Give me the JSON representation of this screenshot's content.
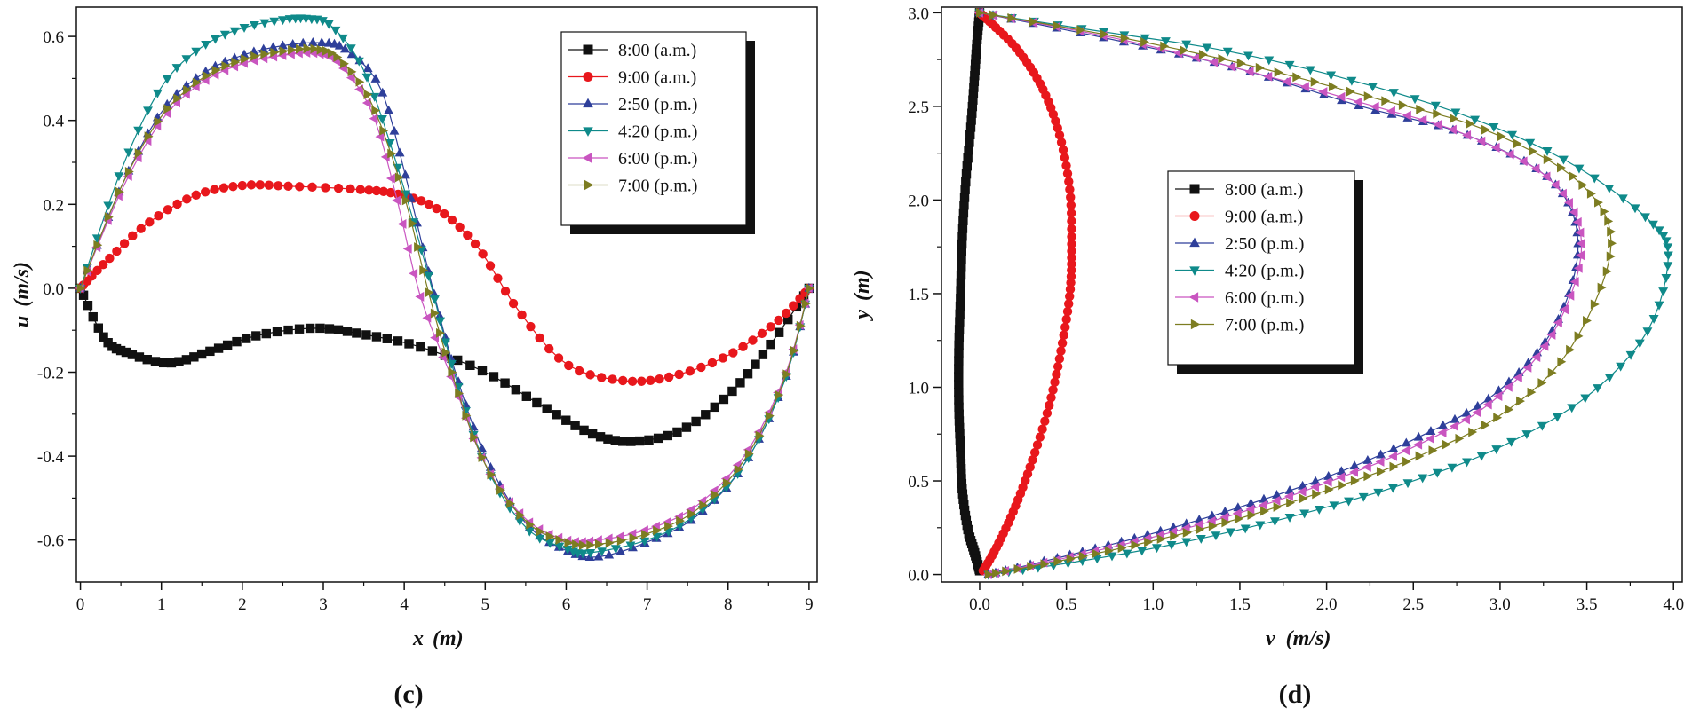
{
  "chart_data": [
    {
      "type": "line",
      "panel_label": "(c)",
      "xlabel_var": "x",
      "xlabel_unit": "(m)",
      "ylabel_var": "u",
      "ylabel_unit": "(m/s)",
      "xlim": [
        -0.05,
        9.1
      ],
      "ylim": [
        -0.7,
        0.67
      ],
      "xticks": [
        0,
        1,
        2,
        3,
        4,
        5,
        6,
        7,
        8,
        9
      ],
      "xtick_labels": [
        "0",
        "1",
        "2",
        "3",
        "4",
        "5",
        "6",
        "7",
        "8",
        "9"
      ],
      "yticks": [
        -0.6,
        -0.4,
        -0.2,
        0.0,
        0.2,
        0.4,
        0.6
      ],
      "ytick_labels": [
        "-0.6",
        "-0.4",
        "-0.2",
        "0.0",
        "0.2",
        "0.4",
        "0.6"
      ],
      "legend_position": "top-right",
      "series": [
        {
          "name": "8:00 (a.m.)",
          "x": [
            0,
            0.3,
            0.6,
            1.1,
            1.6,
            2.2,
            2.9,
            3.5,
            4.2,
            5.0,
            5.7,
            6.3,
            6.8,
            7.4,
            8.0,
            8.5,
            9.0
          ],
          "y": [
            0,
            -0.12,
            -0.155,
            -0.178,
            -0.15,
            -0.112,
            -0.095,
            -0.11,
            -0.14,
            -0.2,
            -0.28,
            -0.345,
            -0.365,
            -0.34,
            -0.255,
            -0.14,
            0
          ]
        },
        {
          "name": "9:00 (a.m.)",
          "x": [
            0,
            0.3,
            0.8,
            1.4,
            2.0,
            2.6,
            3.4,
            3.9,
            4.4,
            4.9,
            5.4,
            6.0,
            6.7,
            7.3,
            8.0,
            8.6,
            9.0
          ],
          "y": [
            0,
            0.06,
            0.15,
            0.22,
            0.245,
            0.243,
            0.236,
            0.225,
            0.19,
            0.1,
            -0.05,
            -0.18,
            -0.22,
            -0.21,
            -0.16,
            -0.08,
            0
          ]
        },
        {
          "name": "2:50 (p.m.)",
          "x": [
            0,
            0.5,
            1.0,
            1.5,
            2.0,
            2.5,
            3.0,
            3.3,
            3.7,
            4.0,
            4.3,
            4.6,
            5.0,
            5.5,
            6.0,
            6.4,
            7.0,
            7.6,
            8.2,
            8.7,
            9.0
          ],
          "y": [
            0,
            0.24,
            0.42,
            0.51,
            0.555,
            0.578,
            0.585,
            0.565,
            0.48,
            0.28,
            0.04,
            -0.18,
            -0.4,
            -0.56,
            -0.625,
            -0.64,
            -0.605,
            -0.545,
            -0.42,
            -0.22,
            0
          ]
        },
        {
          "name": "4:20 (p.m.)",
          "x": [
            0,
            0.5,
            1.0,
            1.5,
            2.0,
            2.5,
            2.8,
            3.1,
            3.5,
            3.9,
            4.3,
            4.6,
            5.0,
            5.5,
            6.0,
            6.3,
            7.0,
            7.6,
            8.2,
            8.7,
            9.0
          ],
          "y": [
            0,
            0.28,
            0.48,
            0.575,
            0.62,
            0.64,
            0.643,
            0.625,
            0.52,
            0.3,
            0.03,
            -0.19,
            -0.42,
            -0.57,
            -0.62,
            -0.63,
            -0.6,
            -0.54,
            -0.42,
            -0.22,
            0
          ]
        },
        {
          "name": "6:00 (p.m.)",
          "x": [
            0,
            0.5,
            1.0,
            1.5,
            2.0,
            2.5,
            2.9,
            3.2,
            3.6,
            3.9,
            4.2,
            4.6,
            5.0,
            5.5,
            6.0,
            6.4,
            7.0,
            7.6,
            8.2,
            8.7,
            9.0
          ],
          "y": [
            0,
            0.23,
            0.4,
            0.49,
            0.535,
            0.555,
            0.56,
            0.535,
            0.42,
            0.22,
            -0.02,
            -0.22,
            -0.42,
            -0.55,
            -0.6,
            -0.6,
            -0.575,
            -0.52,
            -0.4,
            -0.21,
            0
          ]
        },
        {
          "name": "7:00 (p.m.)",
          "x": [
            0,
            0.5,
            1.0,
            1.5,
            2.0,
            2.5,
            2.9,
            3.2,
            3.6,
            4.0,
            4.3,
            4.6,
            5.0,
            5.5,
            6.0,
            6.4,
            7.0,
            7.6,
            8.2,
            8.7,
            9.0
          ],
          "y": [
            0,
            0.24,
            0.41,
            0.5,
            0.545,
            0.565,
            0.57,
            0.545,
            0.44,
            0.22,
            -0.01,
            -0.21,
            -0.42,
            -0.555,
            -0.605,
            -0.61,
            -0.585,
            -0.53,
            -0.41,
            -0.215,
            0
          ]
        }
      ]
    },
    {
      "type": "line",
      "panel_label": "(d)",
      "xlabel_var": "v",
      "xlabel_unit": "(m/s)",
      "ylabel_var": "y",
      "ylabel_unit": "(m)",
      "xlim": [
        -0.22,
        4.05
      ],
      "ylim": [
        -0.04,
        3.03
      ],
      "xticks": [
        0,
        0.5,
        1.0,
        1.5,
        2.0,
        2.5,
        3.0,
        3.5,
        4.0
      ],
      "xtick_labels": [
        "0.0",
        "0.5",
        "1.0",
        "1.5",
        "2.0",
        "2.5",
        "3.0",
        "3.5",
        "4.0"
      ],
      "yticks": [
        0,
        0.5,
        1.0,
        1.5,
        2.0,
        2.5,
        3.0
      ],
      "ytick_labels": [
        "0.0",
        "0.5",
        "1.0",
        "1.5",
        "2.0",
        "2.5",
        "3.0"
      ],
      "legend_position": "center",
      "series": [
        {
          "name": "8:00 (a.m.)",
          "x": [
            0.0,
            -0.03,
            -0.07,
            -0.1,
            -0.11,
            -0.12,
            -0.12,
            -0.11,
            -0.1,
            -0.08,
            -0.05,
            -0.03,
            -0.015,
            0.0
          ],
          "y": [
            0.02,
            0.12,
            0.25,
            0.45,
            0.65,
            0.9,
            1.2,
            1.5,
            1.8,
            2.1,
            2.4,
            2.65,
            2.85,
            3.0
          ]
        },
        {
          "name": "9:00 (a.m.)",
          "x": [
            0.02,
            0.1,
            0.2,
            0.3,
            0.4,
            0.47,
            0.52,
            0.53,
            0.52,
            0.46,
            0.36,
            0.22,
            0.06,
            0.0
          ],
          "y": [
            0.02,
            0.15,
            0.35,
            0.6,
            0.9,
            1.2,
            1.5,
            1.75,
            2.05,
            2.35,
            2.6,
            2.8,
            2.95,
            3.0
          ]
        },
        {
          "name": "2:50 (p.m.)",
          "x": [
            0.05,
            0.5,
            1.0,
            1.5,
            2.0,
            2.5,
            2.95,
            3.3,
            3.45,
            3.3,
            2.8,
            2.2,
            1.5,
            0.8,
            0.0
          ],
          "y": [
            0.0,
            0.1,
            0.22,
            0.36,
            0.52,
            0.72,
            0.95,
            1.3,
            1.75,
            2.1,
            2.35,
            2.5,
            2.7,
            2.85,
            3.0
          ]
        },
        {
          "name": "4:20 (p.m.)",
          "x": [
            0.05,
            0.5,
            1.0,
            1.5,
            2.0,
            2.5,
            3.0,
            3.5,
            3.85,
            3.97,
            3.85,
            3.4,
            2.8,
            2.1,
            1.4,
            0.7,
            0.0
          ],
          "y": [
            0.0,
            0.06,
            0.14,
            0.24,
            0.36,
            0.5,
            0.68,
            0.95,
            1.3,
            1.7,
            1.9,
            2.2,
            2.45,
            2.65,
            2.8,
            2.9,
            3.0
          ]
        },
        {
          "name": "6:00 (p.m.)",
          "x": [
            0.05,
            0.5,
            1.0,
            1.5,
            2.0,
            2.5,
            2.95,
            3.3,
            3.47,
            3.3,
            2.8,
            2.2,
            1.5,
            0.8,
            0.0
          ],
          "y": [
            0.0,
            0.09,
            0.2,
            0.33,
            0.49,
            0.68,
            0.92,
            1.28,
            1.75,
            2.1,
            2.35,
            2.52,
            2.7,
            2.86,
            3.0
          ]
        },
        {
          "name": "7:00 (p.m.)",
          "x": [
            0.05,
            0.5,
            1.0,
            1.5,
            2.0,
            2.5,
            3.0,
            3.4,
            3.64,
            3.45,
            2.9,
            2.25,
            1.55,
            0.8,
            0.0
          ],
          "y": [
            0.0,
            0.08,
            0.18,
            0.3,
            0.45,
            0.62,
            0.85,
            1.2,
            1.75,
            2.1,
            2.38,
            2.55,
            2.72,
            2.87,
            3.0
          ]
        }
      ]
    }
  ],
  "series_styles": [
    {
      "color": "#111111",
      "marker": "square"
    },
    {
      "color": "#e8171c",
      "marker": "circle"
    },
    {
      "color": "#2e3f9a",
      "marker": "triangle-up"
    },
    {
      "color": "#0f8a8a",
      "marker": "triangle-down"
    },
    {
      "color": "#c955c0",
      "marker": "triangle-left"
    },
    {
      "color": "#7d7d21",
      "marker": "triangle-right"
    }
  ]
}
